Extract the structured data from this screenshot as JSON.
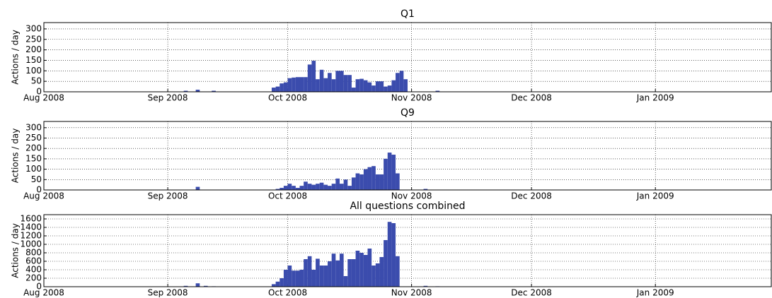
{
  "chart_data": [
    {
      "type": "histogram",
      "title": "Q1",
      "ylabel": "Actions / day",
      "color": "#3b4cad",
      "grid": true,
      "bins": [
        30,
        31,
        32,
        33,
        34,
        35,
        36,
        37,
        38,
        39,
        40,
        41,
        42,
        43,
        44,
        45,
        46,
        47,
        48,
        49,
        50,
        51,
        52,
        53,
        54,
        55,
        56,
        57,
        58,
        59,
        60,
        61,
        62,
        63,
        64,
        65,
        66,
        67,
        68,
        69,
        70,
        71,
        72,
        73,
        74,
        75,
        76,
        77,
        78,
        79,
        80,
        81,
        82,
        83,
        84,
        85,
        86,
        87,
        88,
        89,
        90,
        91,
        92,
        93,
        94,
        95,
        96,
        97,
        98,
        99,
        100,
        101
      ],
      "values": [
        0,
        0,
        0,
        0,
        0,
        5,
        0,
        0,
        10,
        0,
        0,
        0,
        5,
        0,
        0,
        0,
        0,
        0,
        0,
        0,
        0,
        0,
        0,
        0,
        0,
        0,
        0,
        20,
        25,
        40,
        45,
        65,
        68,
        70,
        70,
        70,
        130,
        148,
        60,
        105,
        65,
        90,
        60,
        100,
        100,
        80,
        80,
        20,
        60,
        62,
        55,
        45,
        30,
        50,
        50,
        25,
        30,
        55,
        90,
        100,
        60,
        0,
        0,
        0,
        0,
        0,
        0,
        0,
        5,
        0,
        0
      ],
      "xlim": [
        0,
        182
      ],
      "xticks": [
        {
          "value": 0,
          "label": "Aug 2008"
        },
        {
          "value": 31,
          "label": "Sep 2008"
        },
        {
          "value": 61,
          "label": "Oct 2008"
        },
        {
          "value": 92,
          "label": "Nov 2008"
        },
        {
          "value": 122,
          "label": "Dec 2008"
        },
        {
          "value": 153,
          "label": "Jan 2009"
        }
      ],
      "ylim": [
        0,
        330
      ],
      "yticks": [
        0,
        50,
        100,
        150,
        200,
        250,
        300
      ]
    },
    {
      "type": "histogram",
      "title": "Q9",
      "ylabel": "Actions / day",
      "color": "#3b4cad",
      "grid": true,
      "bins": [
        30,
        31,
        32,
        33,
        34,
        35,
        36,
        37,
        38,
        39,
        40,
        41,
        42,
        43,
        44,
        45,
        46,
        47,
        48,
        49,
        50,
        51,
        52,
        53,
        54,
        55,
        56,
        57,
        58,
        59,
        60,
        61,
        62,
        63,
        64,
        65,
        66,
        67,
        68,
        69,
        70,
        71,
        72,
        73,
        74,
        75,
        76,
        77,
        78,
        79,
        80,
        81,
        82,
        83,
        84,
        85,
        86,
        87,
        88,
        89,
        90,
        91,
        92,
        93,
        94,
        95,
        96,
        97,
        98,
        99,
        100,
        101
      ],
      "values": [
        0,
        0,
        0,
        0,
        0,
        0,
        0,
        0,
        15,
        0,
        0,
        0,
        0,
        0,
        0,
        0,
        0,
        0,
        0,
        0,
        0,
        0,
        0,
        0,
        0,
        0,
        0,
        0,
        5,
        10,
        20,
        30,
        20,
        10,
        20,
        40,
        30,
        25,
        30,
        35,
        25,
        20,
        30,
        55,
        30,
        50,
        20,
        60,
        80,
        75,
        100,
        110,
        115,
        75,
        75,
        150,
        180,
        170,
        80,
        0,
        0,
        0,
        0,
        0,
        0,
        5,
        0,
        0,
        0,
        0,
        0
      ],
      "xlim": [
        0,
        182
      ],
      "xticks": [
        {
          "value": 0,
          "label": "Aug 2008"
        },
        {
          "value": 31,
          "label": "Sep 2008"
        },
        {
          "value": 61,
          "label": "Oct 2008"
        },
        {
          "value": 92,
          "label": "Nov 2008"
        },
        {
          "value": 122,
          "label": "Dec 2008"
        },
        {
          "value": 153,
          "label": "Jan 2009"
        }
      ],
      "ylim": [
        0,
        330
      ],
      "yticks": [
        0,
        50,
        100,
        150,
        200,
        250,
        300
      ]
    },
    {
      "type": "histogram",
      "title": "All questions combined",
      "ylabel": "Actions / day",
      "color": "#3b4cad",
      "grid": true,
      "bins": [
        30,
        31,
        32,
        33,
        34,
        35,
        36,
        37,
        38,
        39,
        40,
        41,
        42,
        43,
        44,
        45,
        46,
        47,
        48,
        49,
        50,
        51,
        52,
        53,
        54,
        55,
        56,
        57,
        58,
        59,
        60,
        61,
        62,
        63,
        64,
        65,
        66,
        67,
        68,
        69,
        70,
        71,
        72,
        73,
        74,
        75,
        76,
        77,
        78,
        79,
        80,
        81,
        82,
        83,
        84,
        85,
        86,
        87,
        88,
        89,
        90,
        91,
        92,
        93,
        94,
        95,
        96,
        97,
        98,
        99,
        100,
        101
      ],
      "values": [
        0,
        0,
        0,
        0,
        0,
        20,
        0,
        0,
        80,
        0,
        20,
        0,
        10,
        0,
        0,
        0,
        0,
        0,
        0,
        0,
        0,
        0,
        0,
        0,
        0,
        0,
        0,
        60,
        120,
        200,
        400,
        500,
        380,
        380,
        400,
        650,
        720,
        400,
        660,
        500,
        500,
        600,
        780,
        620,
        780,
        250,
        650,
        650,
        850,
        800,
        750,
        900,
        500,
        550,
        700,
        1100,
        1530,
        1500,
        720,
        0,
        0,
        0,
        0,
        0,
        0,
        20,
        0,
        0,
        10,
        0,
        0
      ],
      "xlim": [
        0,
        182
      ],
      "xticks": [
        {
          "value": 0,
          "label": "Aug 2008"
        },
        {
          "value": 31,
          "label": "Sep 2008"
        },
        {
          "value": 61,
          "label": "Oct 2008"
        },
        {
          "value": 92,
          "label": "Nov 2008"
        },
        {
          "value": 122,
          "label": "Dec 2008"
        },
        {
          "value": 153,
          "label": "Jan 2009"
        }
      ],
      "ylim": [
        0,
        1700
      ],
      "yticks": [
        0,
        200,
        400,
        600,
        800,
        1000,
        1200,
        1400,
        1600
      ]
    }
  ]
}
